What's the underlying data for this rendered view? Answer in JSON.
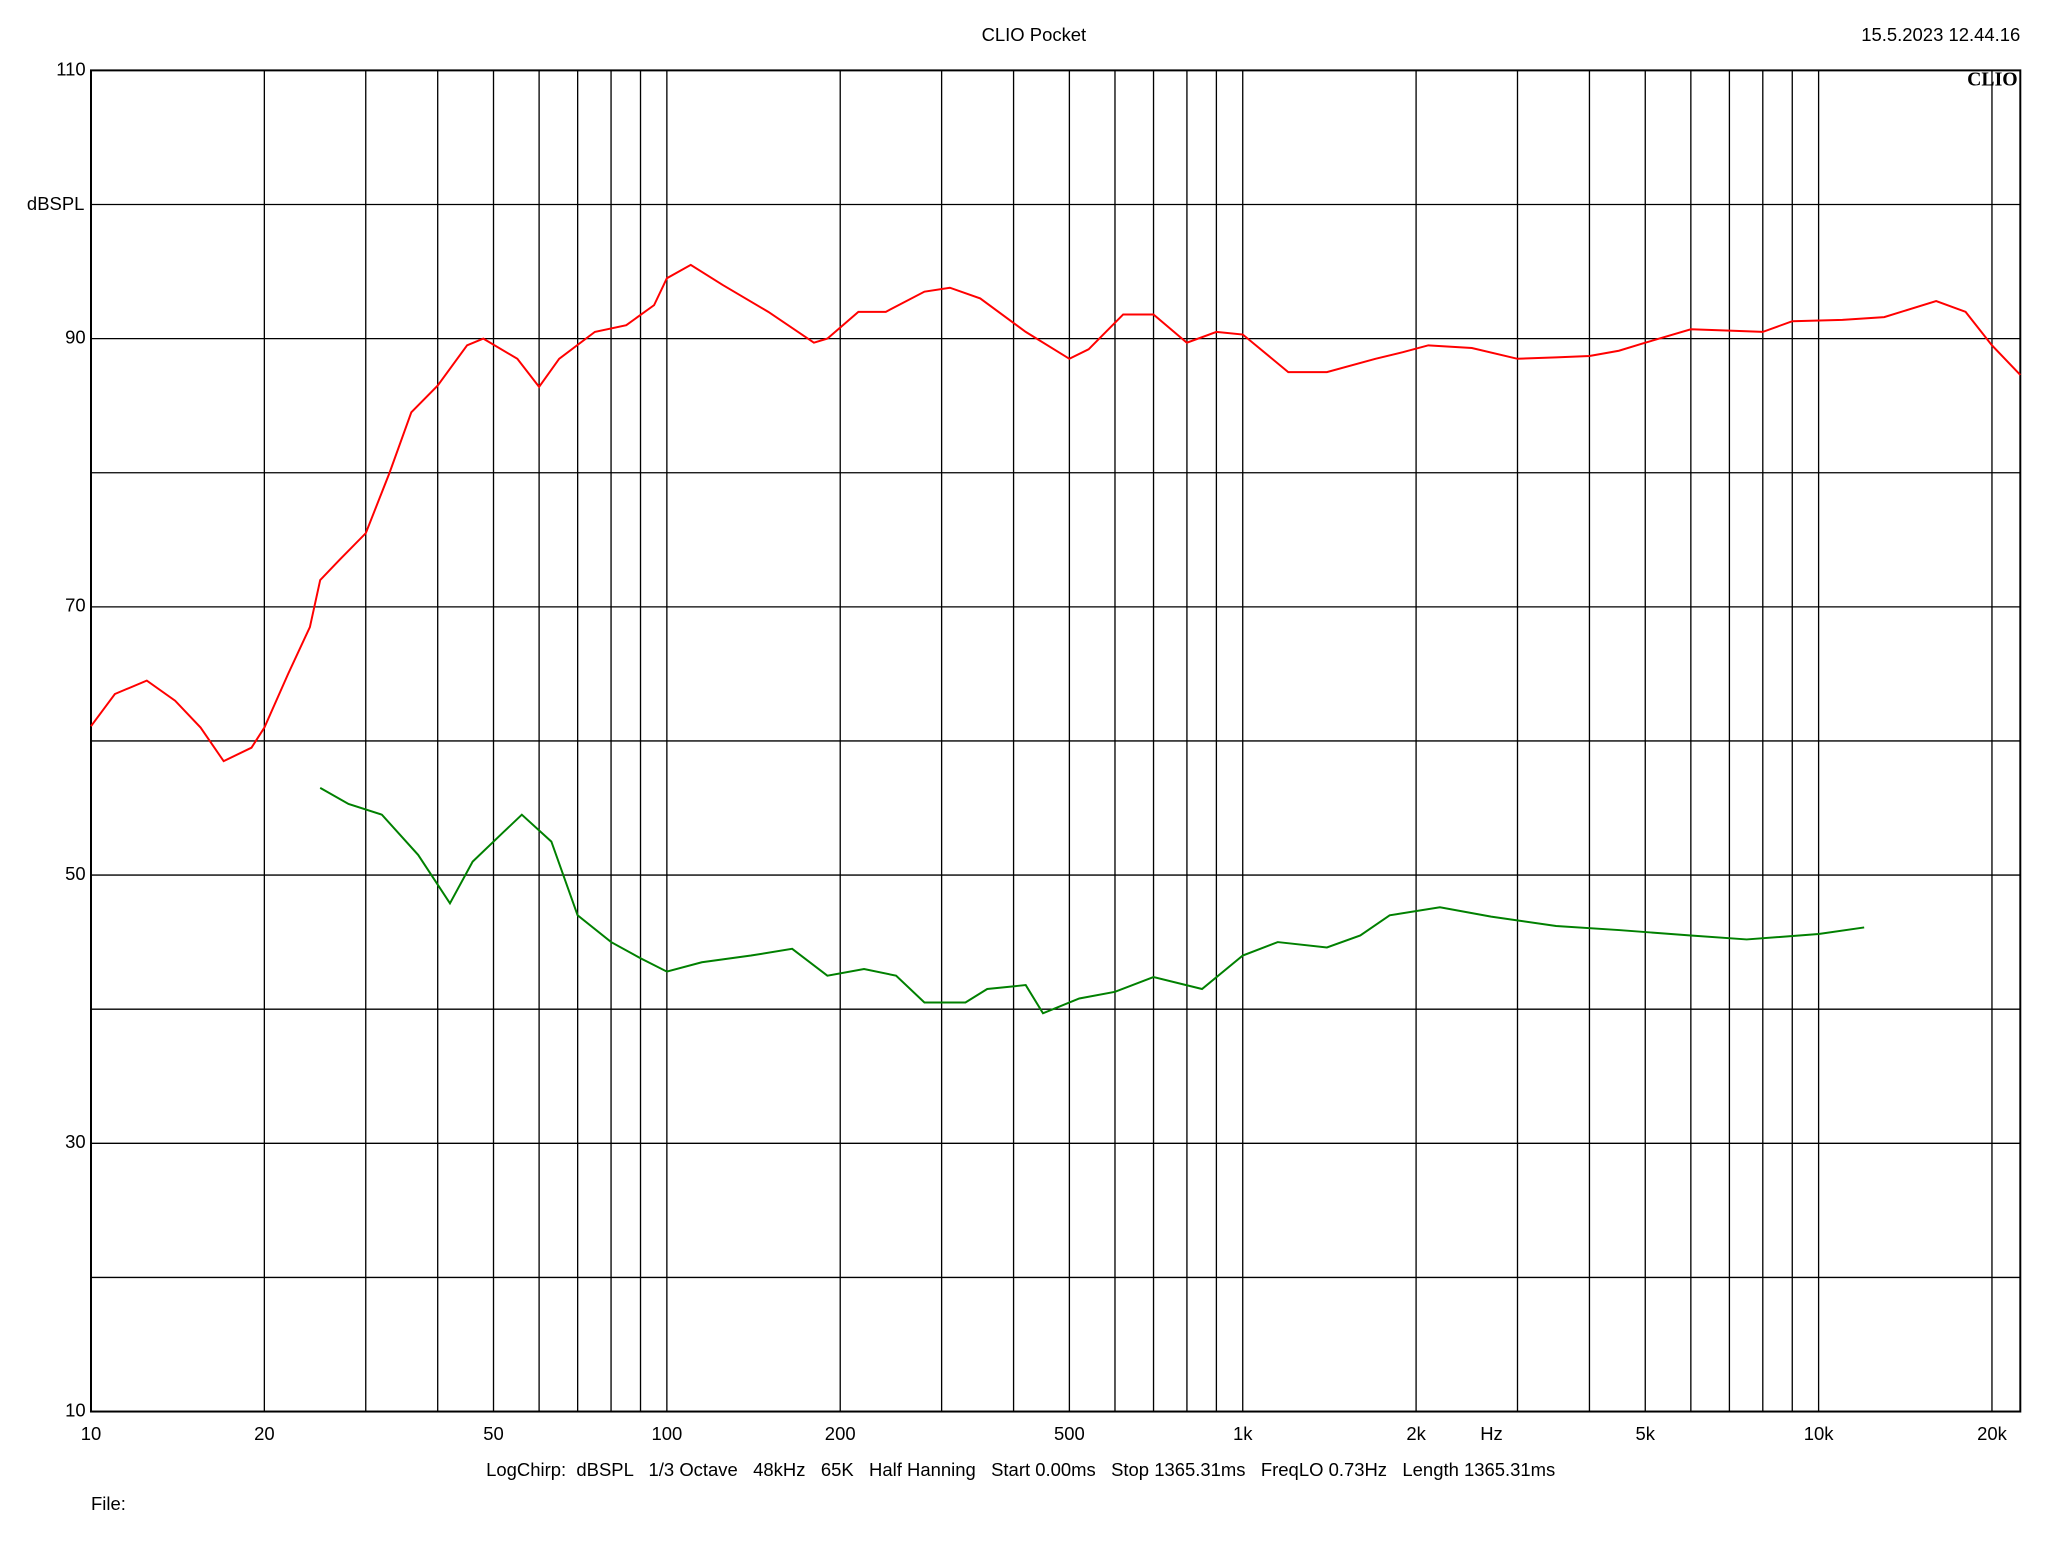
{
  "chart_data": {
    "type": "line",
    "title": "CLIO Pocket",
    "timestamp": "15.5.2023 12.44.16",
    "logo": "CLIO",
    "ylabel": "dBSPL",
    "xlabel": "Hz",
    "footer": "LogChirp:  dBSPL   1/3 Octave   48kHz   65K   Half Hanning   Start 0.00ms   Stop 1365.31ms   FreqLO 0.73Hz   Length 1365.31ms",
    "file_label": "File:",
    "xscale": "log",
    "xlim": [
      10,
      22400
    ],
    "ylim": [
      10,
      110
    ],
    "xticks": [
      10,
      20,
      50,
      100,
      200,
      500,
      {
        "value": 1000,
        "label": "1k"
      },
      {
        "value": 2000,
        "label": "2k"
      },
      {
        "value": 5000,
        "label": "5k"
      },
      {
        "value": 10000,
        "label": "10k"
      },
      {
        "value": 20000,
        "label": "20k"
      }
    ],
    "x_grid": [
      10,
      20,
      30,
      40,
      50,
      60,
      70,
      80,
      90,
      100,
      200,
      300,
      400,
      500,
      600,
      700,
      800,
      900,
      1000,
      2000,
      3000,
      4000,
      5000,
      6000,
      7000,
      8000,
      9000,
      10000,
      20000
    ],
    "yticks": [
      10,
      30,
      50,
      70,
      90,
      110
    ],
    "y_grid": [
      10,
      20,
      30,
      40,
      50,
      60,
      70,
      80,
      90,
      100,
      110
    ],
    "grid": true,
    "series": [
      {
        "color": "#ff0000",
        "x": [
          10,
          11,
          12.5,
          14,
          15.5,
          17,
          19,
          20,
          22,
          24,
          25,
          27,
          30,
          33,
          36,
          40,
          45,
          48,
          55,
          60,
          65,
          75,
          85,
          95,
          100,
          110,
          125,
          150,
          180,
          190,
          215,
          240,
          280,
          310,
          350,
          420,
          500,
          540,
          620,
          700,
          800,
          900,
          1000,
          1200,
          1400,
          1700,
          1900,
          2100,
          2500,
          3000,
          3500,
          4000,
          4500,
          5000,
          6000,
          7000,
          8000,
          9000,
          11000,
          13000,
          16000,
          18000,
          20000,
          22400
        ],
        "values": [
          61.1,
          63.5,
          64.5,
          63,
          61,
          58.5,
          59.5,
          61,
          65,
          68.5,
          72,
          73.5,
          75.5,
          80,
          84.5,
          86.5,
          89.5,
          90,
          88.5,
          86.4,
          88.5,
          90.5,
          91,
          92.5,
          94.5,
          95.5,
          94,
          92,
          89.7,
          90,
          92,
          92,
          93.5,
          93.8,
          93,
          90.5,
          88.5,
          89.2,
          91.8,
          91.8,
          89.7,
          90.5,
          90.3,
          87.5,
          87.5,
          88.5,
          89,
          89.5,
          89.3,
          88.5,
          88.6,
          88.7,
          89.1,
          89.7,
          90.7,
          90.6,
          90.5,
          91.3,
          91.4,
          91.6,
          92.8,
          92,
          89.5,
          87.3
        ]
      },
      {
        "color": "#008000",
        "x": [
          25,
          28,
          32,
          37,
          42,
          46,
          52,
          56,
          63,
          70,
          80,
          90,
          100,
          115,
          140,
          165,
          190,
          220,
          250,
          280,
          330,
          360,
          420,
          450,
          520,
          600,
          700,
          850,
          1000,
          1150,
          1400,
          1600,
          1800,
          2200,
          2700,
          3500,
          4500,
          6000,
          7500,
          10000,
          12000
        ],
        "values": [
          56.5,
          55.3,
          54.5,
          51.5,
          47.9,
          51,
          53.2,
          54.5,
          52.5,
          47,
          45,
          43.8,
          42.8,
          43.5,
          44,
          44.5,
          42.5,
          43,
          42.5,
          40.5,
          40.5,
          41.5,
          41.8,
          39.7,
          40.8,
          41.3,
          42.4,
          41.5,
          44,
          45,
          44.6,
          45.5,
          47,
          47.6,
          46.9,
          46.2,
          45.9,
          45.5,
          45.2,
          45.6,
          46.1
        ]
      }
    ]
  }
}
